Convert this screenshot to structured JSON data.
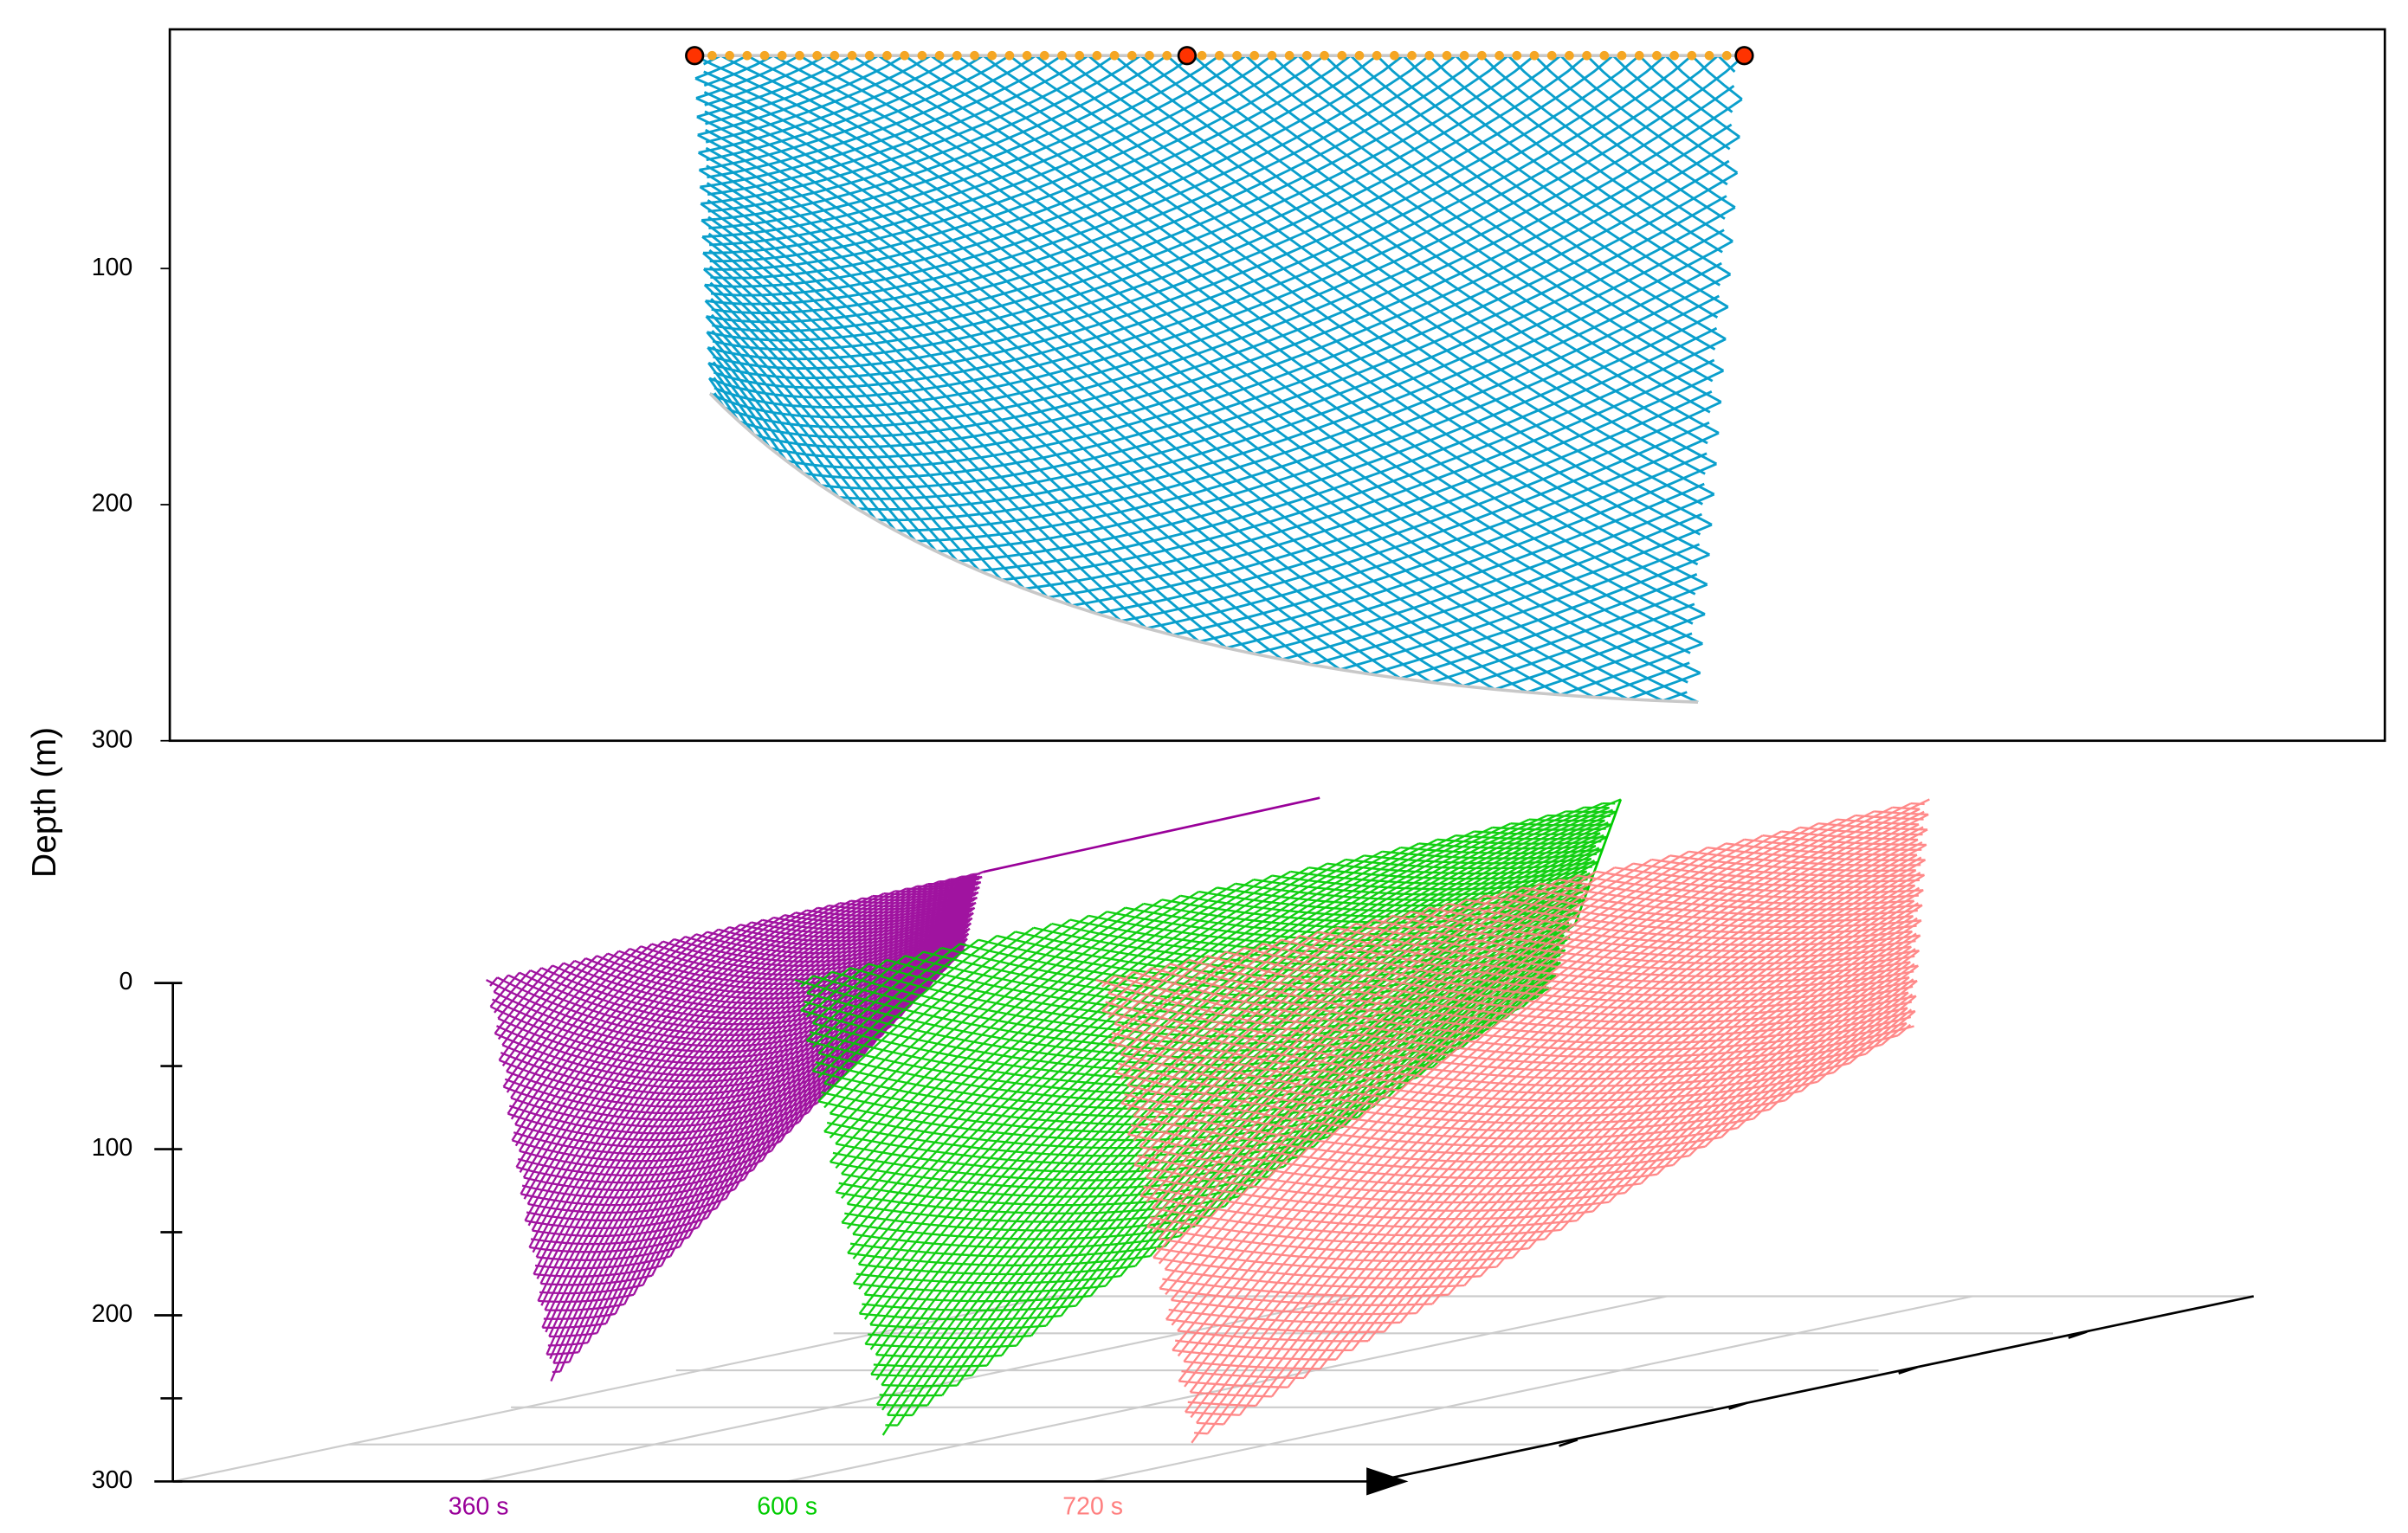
{
  "chart_data": [
    {
      "type": "net",
      "ylabel": "Depth (m)",
      "ylim": [
        0,
        300
      ],
      "yticks": [
        100,
        200,
        300
      ],
      "color": "#0a9fcc"
    },
    {
      "type": "net3d",
      "ylim": [
        0,
        300
      ],
      "yticks": [
        0,
        100,
        200,
        300
      ],
      "series": [
        {
          "name": "360 s",
          "color": "#990099"
        },
        {
          "name": "600 s",
          "color": "#00cc00"
        },
        {
          "name": "720 s",
          "color": "#ff8080"
        }
      ]
    }
  ]
}
